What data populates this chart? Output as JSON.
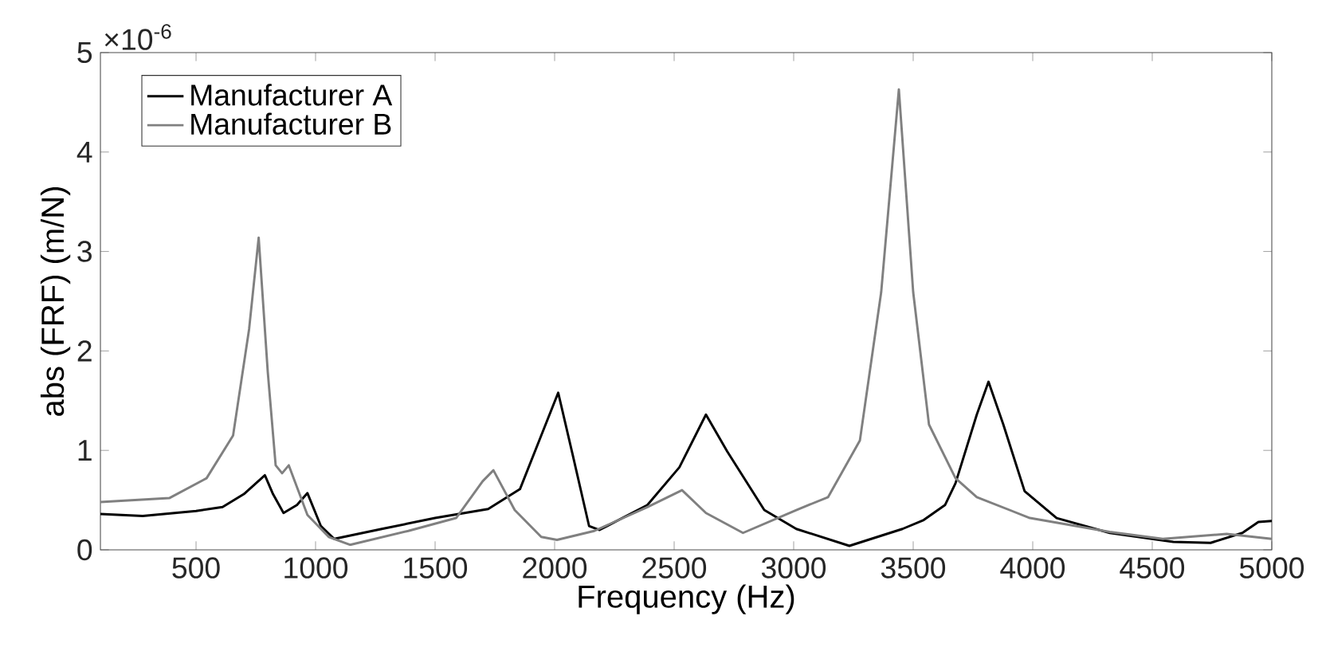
{
  "chart_data": {
    "type": "line",
    "xlabel": "Frequency (Hz)",
    "ylabel": "abs (FRF) (m/N)",
    "annotations": [
      "×10$^{-6}$"
    ],
    "xlim": [
      100,
      5000
    ],
    "ylim": [
      0,
      5
    ],
    "xticks": [
      500,
      1000,
      1500,
      2000,
      2500,
      3000,
      3500,
      4000,
      4500,
      5000
    ],
    "yticks": [
      0,
      1,
      2,
      3,
      4,
      5
    ],
    "legend": "top left",
    "series": [
      {
        "name": "Manufacturer A",
        "color": "#000000",
        "x": [
          100,
          277,
          500,
          611,
          700,
          788,
          822,
          866,
          922,
          966,
          1022,
          1078,
          1277,
          1500,
          1722,
          1855,
          1944,
          2015,
          2077,
          2144,
          2188,
          2388,
          2522,
          2633,
          2722,
          2877,
          3011,
          3233,
          3455,
          3544,
          3633,
          3677,
          3766,
          3815,
          3877,
          3966,
          4100,
          4322,
          4588,
          4744,
          4877,
          4944,
          5000
        ],
        "values": [
          0.36,
          0.34,
          0.39,
          0.43,
          0.56,
          0.75,
          0.56,
          0.37,
          0.45,
          0.57,
          0.24,
          0.11,
          0.21,
          0.32,
          0.41,
          0.61,
          1.15,
          1.58,
          0.94,
          0.24,
          0.2,
          0.45,
          0.83,
          1.36,
          0.99,
          0.4,
          0.21,
          0.04,
          0.21,
          0.3,
          0.45,
          0.67,
          1.36,
          1.69,
          1.26,
          0.59,
          0.32,
          0.17,
          0.08,
          0.07,
          0.17,
          0.28,
          0.29
        ]
      },
      {
        "name": "Manufacturer B",
        "color": "#808080",
        "x": [
          100,
          388,
          544,
          655,
          722,
          762,
          800,
          833,
          860,
          888,
          966,
          1055,
          1144,
          1388,
          1588,
          1699,
          1744,
          1833,
          1944,
          2010,
          2166,
          2388,
          2533,
          2633,
          2788,
          3011,
          3144,
          3277,
          3366,
          3440,
          3500,
          3566,
          3677,
          3766,
          3988,
          4322,
          4544,
          4811,
          5000
        ],
        "values": [
          0.48,
          0.52,
          0.72,
          1.15,
          2.22,
          3.14,
          1.79,
          0.85,
          0.77,
          0.85,
          0.35,
          0.13,
          0.05,
          0.19,
          0.32,
          0.69,
          0.8,
          0.4,
          0.13,
          0.1,
          0.19,
          0.43,
          0.6,
          0.37,
          0.17,
          0.4,
          0.53,
          1.1,
          2.59,
          4.63,
          2.59,
          1.26,
          0.72,
          0.53,
          0.32,
          0.18,
          0.11,
          0.16,
          0.11
        ]
      }
    ]
  }
}
